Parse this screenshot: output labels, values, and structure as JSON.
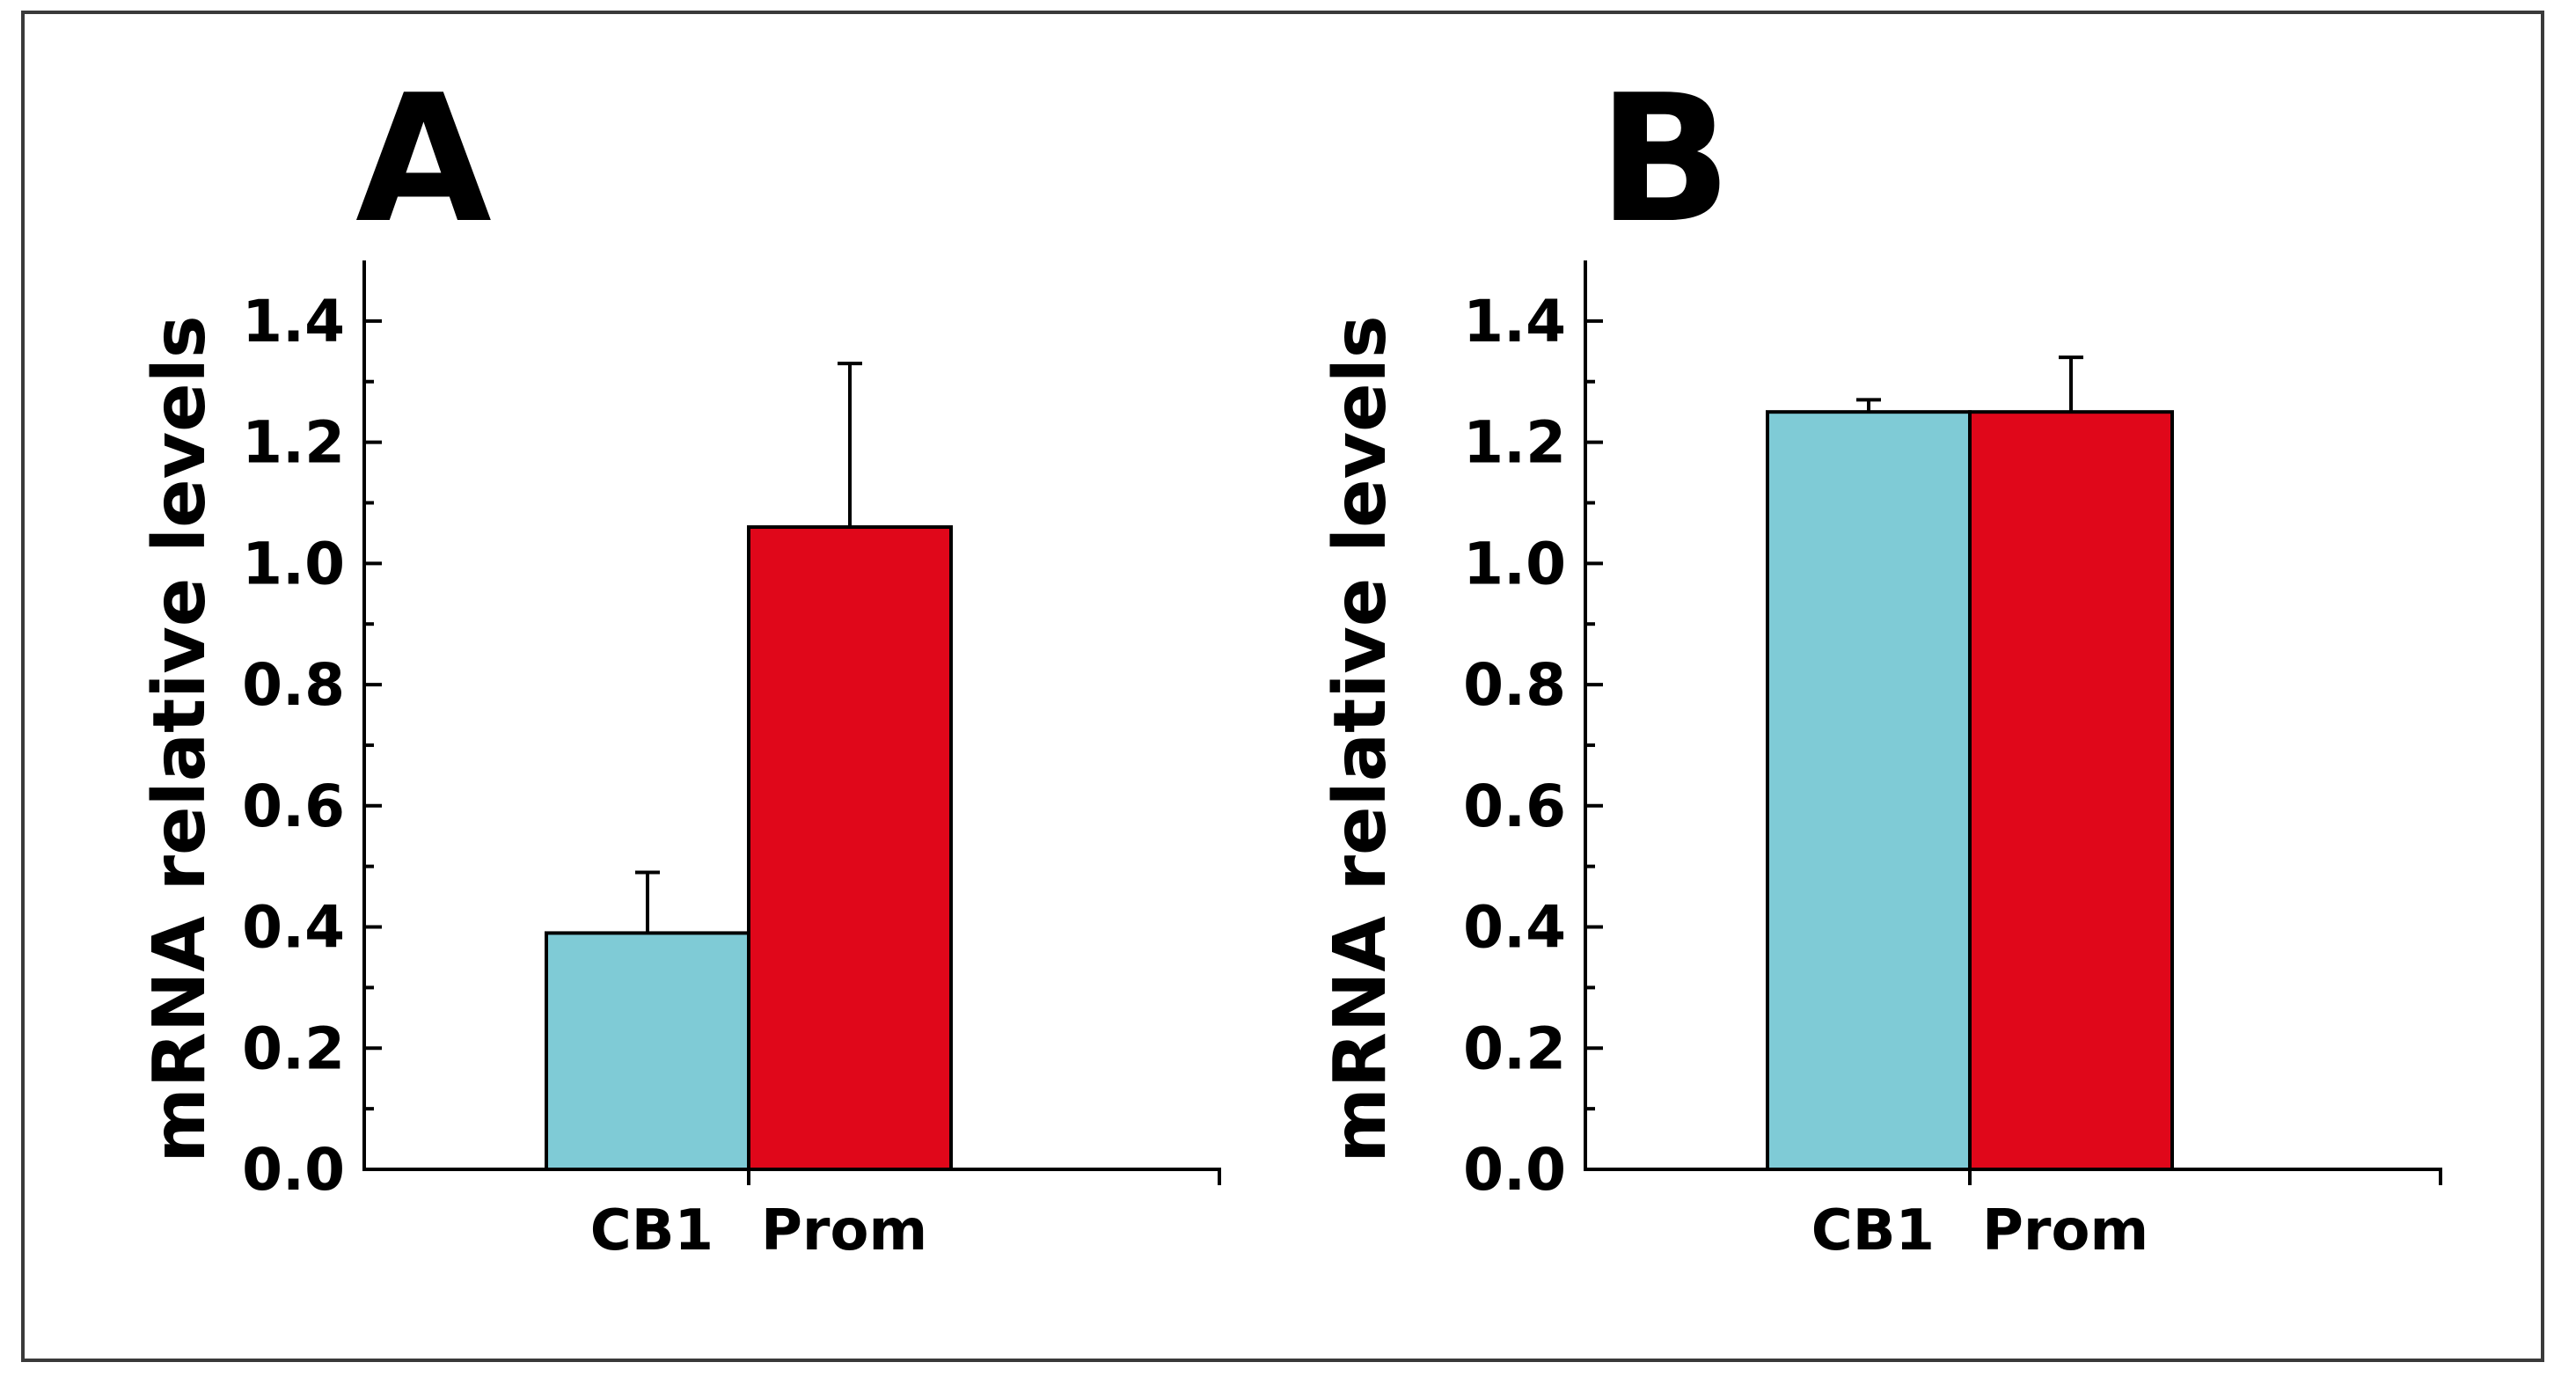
{
  "chart_data": [
    {
      "type": "bar",
      "panel_label": "A",
      "ylabel": "mRNA relative levels",
      "xlabel": "",
      "ylim": [
        0,
        1.5
      ],
      "yticks": [
        "0.0",
        "0.2",
        "0.4",
        "0.6",
        "0.8",
        "1.0",
        "1.2",
        "1.4"
      ],
      "categories": [
        "CB1",
        "Prom"
      ],
      "values": [
        0.39,
        1.06
      ],
      "errors": [
        0.1,
        0.27
      ],
      "colors": [
        "#7fcbd6",
        "#e0071a"
      ]
    },
    {
      "type": "bar",
      "panel_label": "B",
      "ylabel": "mRNA relative levels",
      "xlabel": "",
      "ylim": [
        0,
        1.5
      ],
      "yticks": [
        "0.0",
        "0.2",
        "0.4",
        "0.6",
        "0.8",
        "1.0",
        "1.2",
        "1.4"
      ],
      "categories": [
        "CB1",
        "Prom"
      ],
      "values": [
        1.25,
        1.25
      ],
      "errors": [
        0.02,
        0.09
      ],
      "colors": [
        "#7fcbd6",
        "#e0071a"
      ]
    }
  ]
}
